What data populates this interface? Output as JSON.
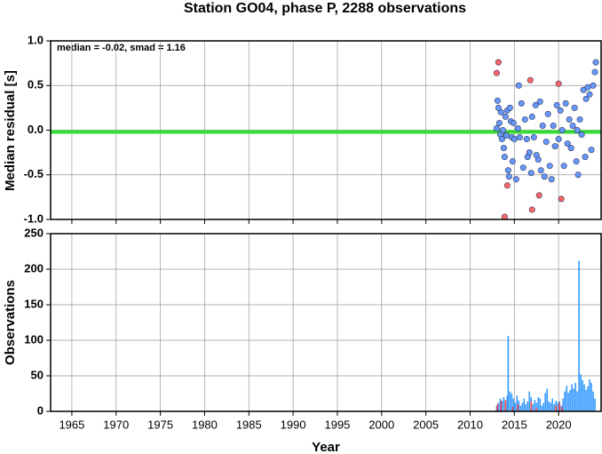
{
  "chart_data": [
    {
      "type": "scatter",
      "title": "Station GO04, phase P, 2288 observations",
      "y_label": "Median residual [s]",
      "annotation": "median = -0.02, smad = 1.16",
      "median": -0.02,
      "median_color": "#33dd33",
      "xlim": [
        1962.6,
        2024.8
      ],
      "xticks": [
        1965,
        1970,
        1975,
        1980,
        1985,
        1990,
        1995,
        2000,
        2005,
        2010,
        2015,
        2020
      ],
      "ylim": [
        -1,
        1
      ],
      "yticks": [
        {
          "value": -1,
          "label": "-1.0"
        },
        {
          "value": -0.5,
          "label": "-0.5"
        },
        {
          "value": 0,
          "label": "0.0"
        },
        {
          "value": 0.5,
          "label": "0.5"
        },
        {
          "value": 1,
          "label": "1.0"
        }
      ],
      "grid": true,
      "series": [
        {
          "color": "#6699ff",
          "x": [
            2013.0,
            2013.1,
            2013.2,
            2013.3,
            2013.4,
            2013.5,
            2013.6,
            2013.7,
            2013.8,
            2013.9,
            2014.0,
            2014.1,
            2014.2,
            2014.3,
            2014.4,
            2014.5,
            2014.6,
            2014.7,
            2014.8,
            2014.9,
            2015.0,
            2015.2,
            2015.4,
            2015.5,
            2015.6,
            2015.8,
            2016.0,
            2016.2,
            2016.4,
            2016.5,
            2016.7,
            2016.9,
            2017.0,
            2017.2,
            2017.4,
            2017.5,
            2017.7,
            2017.9,
            2018.0,
            2018.2,
            2018.4,
            2018.6,
            2018.8,
            2019.0,
            2019.2,
            2019.4,
            2019.6,
            2019.8,
            2020.0,
            2020.2,
            2020.4,
            2020.6,
            2020.8,
            2021.0,
            2021.2,
            2021.4,
            2021.6,
            2021.8,
            2022.0,
            2022.1,
            2022.2,
            2022.4,
            2022.6,
            2022.8,
            2023.0,
            2023.1,
            2023.3,
            2023.5,
            2023.7,
            2023.9,
            2024.1,
            2024.2
          ],
          "values": [
            0.02,
            0.33,
            0.25,
            0.08,
            -0.05,
            0.2,
            -0.1,
            0.0,
            -0.2,
            -0.3,
            0.15,
            -0.06,
            0.22,
            -0.45,
            -0.52,
            0.25,
            0.1,
            -0.08,
            -0.35,
            0.08,
            -0.1,
            -0.55,
            0.02,
            0.5,
            -0.08,
            0.3,
            -0.42,
            0.12,
            -0.1,
            -0.3,
            -0.25,
            -0.48,
            0.15,
            -0.08,
            0.28,
            -0.28,
            -0.33,
            0.32,
            -0.45,
            0.05,
            -0.52,
            -0.13,
            0.18,
            -0.4,
            -0.55,
            0.05,
            -0.18,
            0.28,
            -0.1,
            0.22,
            0.0,
            -0.4,
            0.3,
            -0.15,
            0.12,
            -0.2,
            0.05,
            0.25,
            -0.35,
            0.0,
            -0.5,
            0.12,
            -0.05,
            0.45,
            -0.3,
            0.35,
            0.48,
            0.4,
            -0.22,
            0.5,
            0.65,
            0.76
          ]
        },
        {
          "color": "#ff6666",
          "x": [
            2013.0,
            2013.2,
            2013.9,
            2014.2,
            2016.8,
            2017.0,
            2017.8,
            2020.0,
            2020.3
          ],
          "values": [
            0.64,
            0.76,
            -0.97,
            -0.62,
            0.56,
            -0.89,
            -0.73,
            0.52,
            -0.77
          ]
        }
      ]
    },
    {
      "type": "bar",
      "y_label": "Observations",
      "x_label": "Year",
      "xlim": [
        1962.6,
        2024.8
      ],
      "xticks": [
        1965,
        1970,
        1975,
        1980,
        1985,
        1990,
        1995,
        2000,
        2005,
        2010,
        2015,
        2020
      ],
      "ylim": [
        0,
        250
      ],
      "yticks": [
        0,
        50,
        100,
        150,
        200,
        250
      ],
      "grid": true,
      "series": [
        {
          "color": "#3399ff",
          "x": [
            2013.0,
            2013.2,
            2013.4,
            2013.6,
            2013.8,
            2014.0,
            2014.2,
            2014.3,
            2014.5,
            2014.7,
            2014.9,
            2015.1,
            2015.3,
            2015.5,
            2015.7,
            2015.9,
            2016.1,
            2016.3,
            2016.5,
            2016.7,
            2016.9,
            2017.1,
            2017.3,
            2017.5,
            2017.7,
            2017.9,
            2018.1,
            2018.3,
            2018.5,
            2018.7,
            2018.9,
            2019.1,
            2019.3,
            2019.5,
            2019.7,
            2019.9,
            2020.1,
            2020.3,
            2020.5,
            2020.7,
            2020.9,
            2021.1,
            2021.3,
            2021.5,
            2021.7,
            2021.9,
            2022.1,
            2022.3,
            2022.5,
            2022.7,
            2022.9,
            2023.1,
            2023.3,
            2023.5,
            2023.7,
            2023.9,
            2024.1
          ],
          "values": [
            8,
            12,
            18,
            15,
            20,
            14,
            22,
            106,
            28,
            25,
            18,
            12,
            22,
            15,
            8,
            12,
            18,
            10,
            14,
            28,
            20,
            10,
            16,
            12,
            20,
            18,
            8,
            12,
            26,
            32,
            14,
            12,
            18,
            10,
            15,
            12,
            14,
            8,
            18,
            28,
            36,
            26,
            30,
            38,
            32,
            40,
            28,
            212,
            52,
            44,
            38,
            30,
            35,
            45,
            40,
            28,
            18
          ]
        },
        {
          "color": "#ee4444",
          "x": [
            2013.1,
            2013.5,
            2014.0,
            2014.8,
            2015.4,
            2016.9,
            2017.5,
            2019.7,
            2020.1,
            2020.4
          ],
          "values": [
            10,
            14,
            16,
            6,
            10,
            14,
            5,
            8,
            12,
            6
          ]
        }
      ]
    }
  ]
}
